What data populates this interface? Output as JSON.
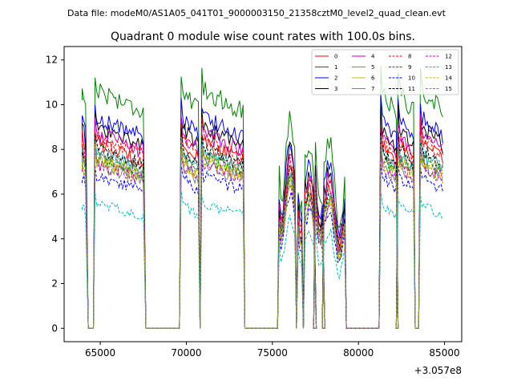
{
  "suptitle": "Data file: modeM0/AS1A05_041T01_9000003150_21358cztM0_level2_quad_clean.evt",
  "chart_data": {
    "type": "line",
    "title": "Quadrant 0 module wise count rates with 100.0s bins.",
    "xlabel": "",
    "ylabel": "",
    "x_offset_label": "+3.057e8",
    "xlim": [
      62900,
      86000
    ],
    "ylim": [
      -0.6,
      12.6
    ],
    "x_ticks": [
      65000,
      70000,
      75000,
      80000,
      85000
    ],
    "x_tick_labels": [
      "65000",
      "70000",
      "75000",
      "80000",
      "85000"
    ],
    "y_ticks": [
      0,
      2,
      4,
      6,
      8,
      10,
      12
    ],
    "y_tick_labels": [
      "0",
      "2",
      "4",
      "6",
      "8",
      "10",
      "12"
    ],
    "legend_position": "top-right",
    "segments": [
      [
        63950,
        64200
      ],
      [
        64700,
        67550
      ],
      [
        69700,
        70700
      ],
      [
        70900,
        73300
      ],
      [
        75400,
        76300
      ],
      [
        76500,
        76700
      ],
      [
        76900,
        77450
      ],
      [
        77500,
        77950
      ],
      [
        78000,
        79200
      ],
      [
        81300,
        82200
      ],
      [
        82300,
        83200
      ],
      [
        83600,
        84950
      ]
    ],
    "series": [
      {
        "name": "0",
        "color": "#ff0000",
        "dash": "solid",
        "level": 7.9
      },
      {
        "name": "1",
        "color": "#008000",
        "dash": "solid",
        "level": 10.2
      },
      {
        "name": "2",
        "color": "#0000ff",
        "dash": "solid",
        "level": 9.0
      },
      {
        "name": "3",
        "color": "#000000",
        "dash": "solid",
        "level": 8.6
      },
      {
        "name": "4",
        "color": "#bf00bf",
        "dash": "solid",
        "level": 8.3
      },
      {
        "name": "5",
        "color": "#20b2aa",
        "dash": "solid",
        "level": 7.5
      },
      {
        "name": "6",
        "color": "#bfbf00",
        "dash": "solid",
        "level": 7.2
      },
      {
        "name": "7",
        "color": "#808080",
        "dash": "solid",
        "level": 7.0
      },
      {
        "name": "8",
        "color": "#ff0000",
        "dash": "dashed",
        "level": 8.1
      },
      {
        "name": "9",
        "color": "#008000",
        "dash": "dashed",
        "level": 7.3
      },
      {
        "name": "10",
        "color": "#0000ff",
        "dash": "dashed",
        "level": 6.5
      },
      {
        "name": "11",
        "color": "#000000",
        "dash": "dashed",
        "level": 7.7
      },
      {
        "name": "12",
        "color": "#bf00bf",
        "dash": "dashed",
        "level": 7.0
      },
      {
        "name": "13",
        "color": "#00bfbf",
        "dash": "dashed",
        "level": 5.3
      },
      {
        "name": "14",
        "color": "#bfbf00",
        "dash": "dashed",
        "level": 7.1
      },
      {
        "name": "15",
        "color": "#808080",
        "dash": "dashed",
        "level": 7.4
      }
    ]
  }
}
